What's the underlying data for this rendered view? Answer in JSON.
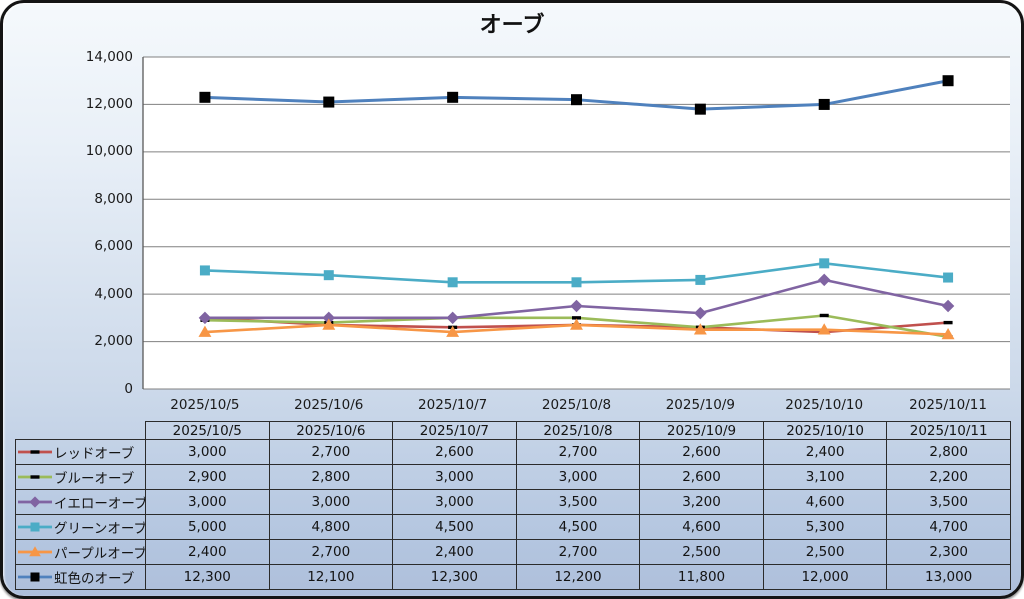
{
  "title": "オーブ",
  "chart_data": {
    "type": "line",
    "title": "オーブ",
    "categories": [
      "2025/10/5",
      "2025/10/6",
      "2025/10/7",
      "2025/10/8",
      "2025/10/9",
      "2025/10/10",
      "2025/10/11"
    ],
    "series": [
      {
        "name": "レッドオーブ",
        "values": [
          3000,
          2700,
          2600,
          2700,
          2600,
          2400,
          2800
        ],
        "line_color": "#C0504D",
        "marker": "dash",
        "marker_color": "#000000"
      },
      {
        "name": "ブルーオーブ",
        "values": [
          2900,
          2800,
          3000,
          3000,
          2600,
          3100,
          2200
        ],
        "line_color": "#9BBB59",
        "marker": "dash",
        "marker_color": "#000000"
      },
      {
        "name": "イエローオーブ",
        "values": [
          3000,
          3000,
          3000,
          3500,
          3200,
          4600,
          3500
        ],
        "line_color": "#8064A2",
        "marker": "diamond",
        "marker_color": "#8064A2"
      },
      {
        "name": "グリーンオーブ",
        "values": [
          5000,
          4800,
          4500,
          4500,
          4600,
          5300,
          4700
        ],
        "line_color": "#4BACC6",
        "marker": "square",
        "marker_color": "#4BACC6"
      },
      {
        "name": "パープルオーブ",
        "values": [
          2400,
          2700,
          2400,
          2700,
          2500,
          2500,
          2300
        ],
        "line_color": "#F79646",
        "marker": "triangle",
        "marker_color": "#F79646"
      },
      {
        "name": "虹色のオーブ",
        "values": [
          12300,
          12100,
          12300,
          12200,
          11800,
          12000,
          13000
        ],
        "line_color": "#4F81BD",
        "marker": "square",
        "marker_color": "#000000"
      }
    ],
    "ylim": [
      0,
      14000
    ],
    "ytick_step": 2000,
    "ytick_labels": [
      "0",
      "2,000",
      "4,000",
      "6,000",
      "8,000",
      "10,000",
      "12,000",
      "14,000"
    ],
    "grid": true,
    "plot_bg": "#FFFFFF",
    "grid_color": "#808080",
    "axis_color": "#595959",
    "legend_position": "table-left"
  }
}
